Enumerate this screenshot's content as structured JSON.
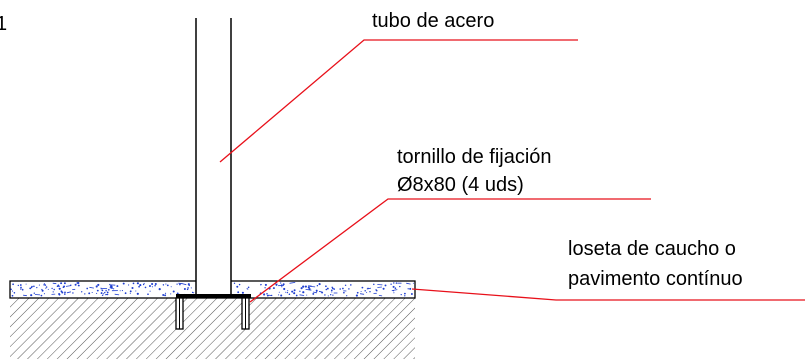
{
  "corner_mark": "1",
  "labels": {
    "tube": "tubo de acero",
    "screw_line1": "tornillo de fijación",
    "screw_line2": "Ø8x80 (4 uds)",
    "tile_line1": "loseta de caucho o",
    "tile_line2": "pavimento contínuo"
  },
  "colors": {
    "line": "#000000",
    "leader": "#e8101a",
    "speckle": "#1f3fd0",
    "hatch": "#555555",
    "text": "#000000"
  }
}
